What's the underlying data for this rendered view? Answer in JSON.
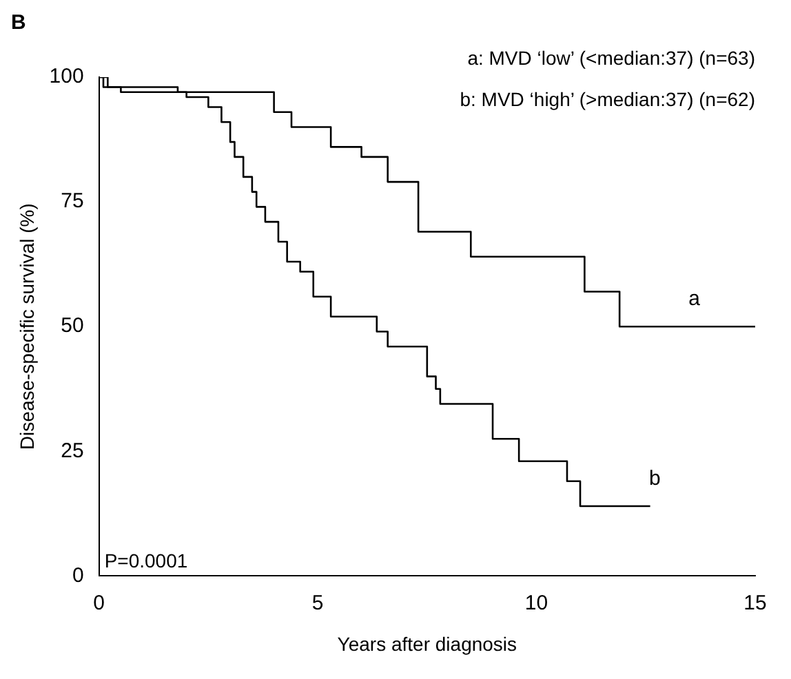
{
  "chart_data": {
    "type": "step",
    "title": "B",
    "xlabel": "Years after diagnosis",
    "ylabel": "Disease-specific survival (%)",
    "xlim": [
      0,
      15
    ],
    "xticks": [
      0,
      5,
      10,
      15
    ],
    "ylim": [
      0,
      100
    ],
    "yticks": [
      0,
      25,
      50,
      75,
      100
    ],
    "grid": false,
    "legend": false,
    "marker": "none",
    "line_style": "solid",
    "series": [
      {
        "name": "a",
        "color": "#000000",
        "x": [
          0,
          0.1,
          1.8,
          4.0,
          4.4,
          5.3,
          6.0,
          6.6,
          7.3,
          8.5,
          11.1,
          11.9,
          15
        ],
        "values": [
          100,
          98,
          97,
          93,
          90,
          86,
          84,
          79,
          69,
          64,
          57,
          50,
          50
        ]
      },
      {
        "name": "b",
        "color": "#000000",
        "x": [
          0,
          0.2,
          0.5,
          2.0,
          2.5,
          2.8,
          3.0,
          3.1,
          3.3,
          3.5,
          3.6,
          3.8,
          4.1,
          4.3,
          4.6,
          4.9,
          5.3,
          6.35,
          6.6,
          7.5,
          7.7,
          7.8,
          9.0,
          9.6,
          10.7,
          11.0,
          12.6
        ],
        "values": [
          100,
          98,
          97,
          96,
          94,
          91,
          87,
          84,
          80,
          77,
          74,
          71,
          67,
          63,
          61,
          56,
          52,
          49,
          46,
          40,
          37.5,
          34.5,
          27.5,
          23,
          19,
          14,
          14
        ]
      }
    ],
    "annotations": [
      "a: MVD ‘low’ (<median:37) (n=63)",
      "b: MVD ‘high’ (>median:37) (n=62)",
      "P=0.0001"
    ]
  }
}
